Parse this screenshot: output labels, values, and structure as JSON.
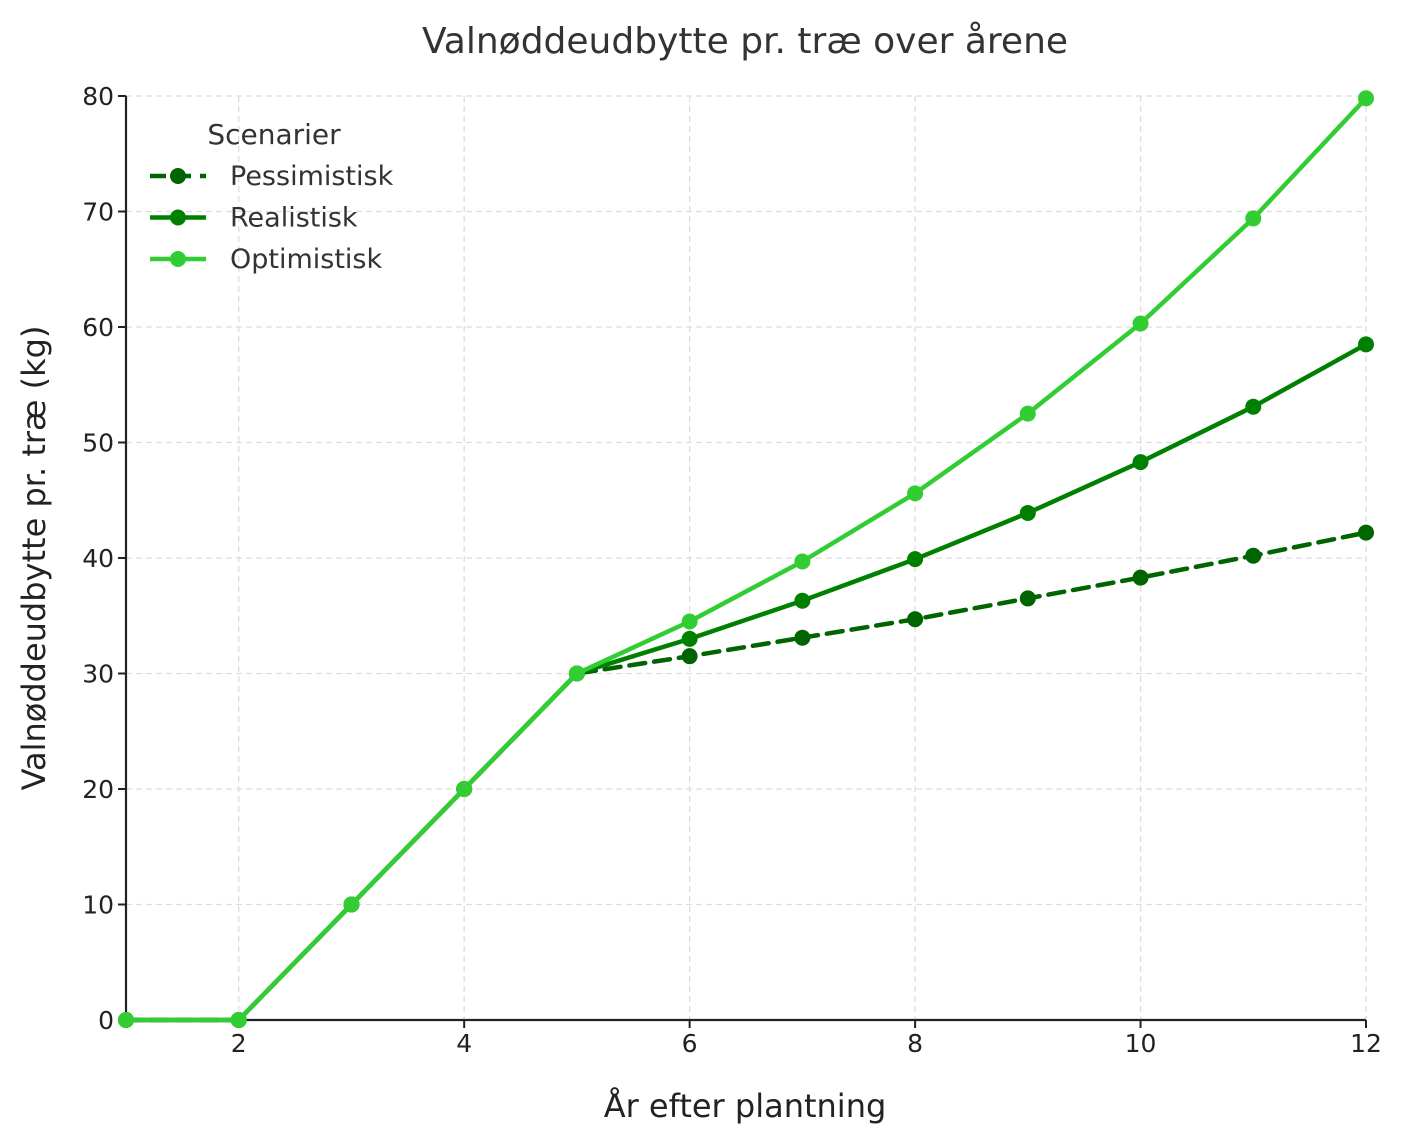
{
  "chart_data": {
    "type": "line",
    "title": "Valnøddeudbytte pr. træ over årene",
    "xlabel": "År efter plantning",
    "ylabel": "Valnøddeudbytte pr. træ (kg)",
    "xlim": [
      1,
      12
    ],
    "ylim": [
      0,
      80
    ],
    "x_ticks": [
      2,
      4,
      6,
      8,
      10,
      12
    ],
    "y_ticks": [
      0,
      10,
      20,
      30,
      40,
      50,
      60,
      70,
      80
    ],
    "grid": true,
    "legend": {
      "title": "Scenarier",
      "position": "top-left"
    },
    "x": [
      1,
      2,
      3,
      4,
      5,
      6,
      7,
      8,
      9,
      10,
      11,
      12
    ],
    "series": [
      {
        "name": "Pessimistisk",
        "color": "#006400",
        "dashed": true,
        "values": [
          0,
          0,
          10,
          20,
          30,
          31.5,
          33.1,
          34.7,
          36.5,
          38.3,
          40.2,
          42.2
        ]
      },
      {
        "name": "Realistisk",
        "color": "#008000",
        "dashed": false,
        "values": [
          0,
          0,
          10,
          20,
          30,
          33,
          36.3,
          39.9,
          43.9,
          48.3,
          53.1,
          58.5
        ]
      },
      {
        "name": "Optimistisk",
        "color": "#32CD32",
        "dashed": false,
        "values": [
          0,
          0,
          10,
          20,
          30,
          34.5,
          39.7,
          45.6,
          52.5,
          60.3,
          69.4,
          79.8
        ]
      }
    ]
  }
}
